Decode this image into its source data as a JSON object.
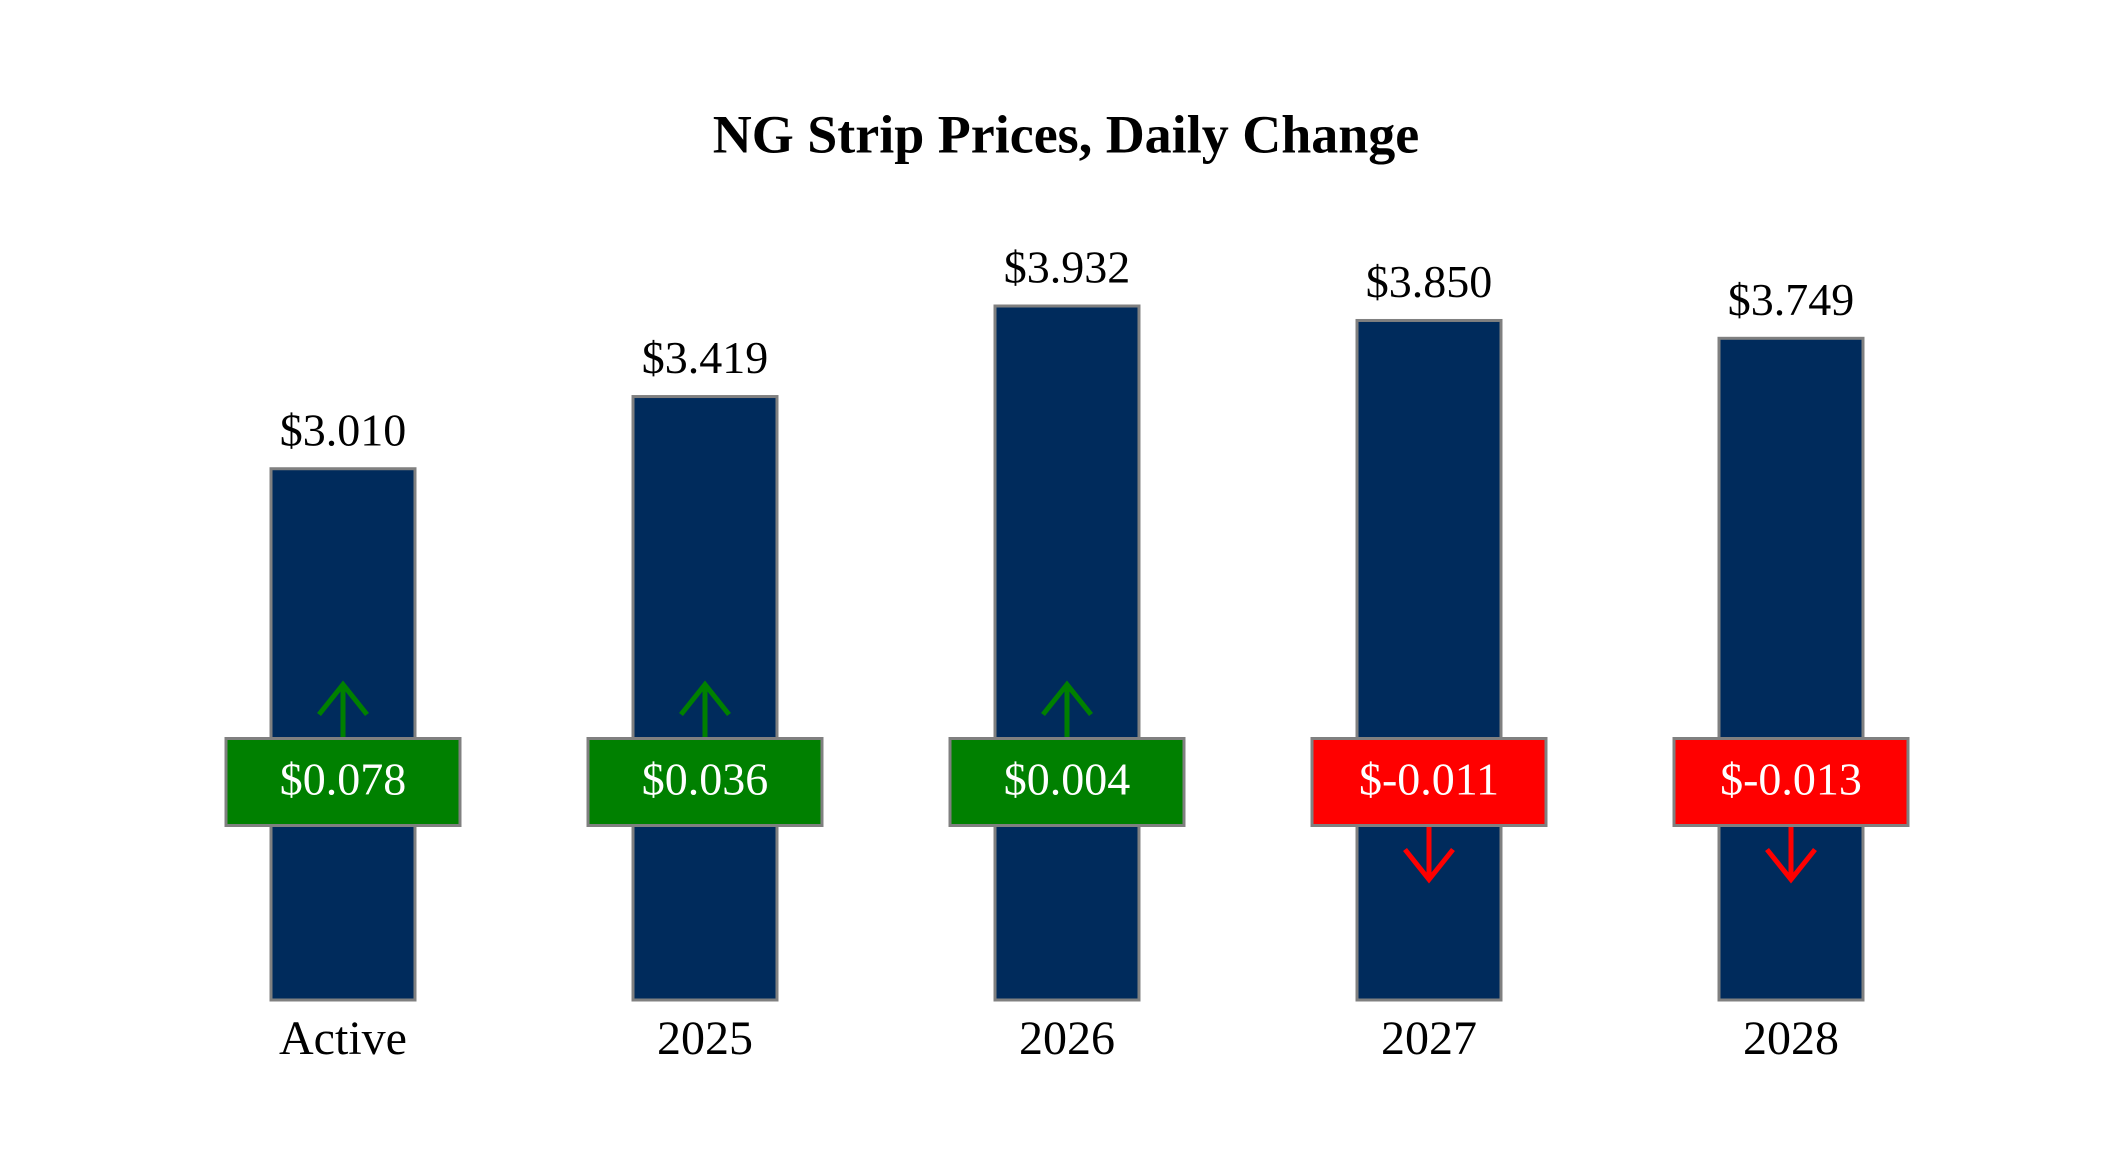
{
  "chart_data": {
    "type": "bar",
    "title": "NG Strip Prices, Daily Change",
    "categories": [
      "Active",
      "2025",
      "2026",
      "2027",
      "2028"
    ],
    "values": [
      3.01,
      3.419,
      3.932,
      3.85,
      3.749
    ],
    "value_labels": [
      "$3.010",
      "$3.419",
      "$3.932",
      "$3.850",
      "$3.749"
    ],
    "color": "#002b5c",
    "changes": [
      0.078,
      0.036,
      0.004,
      -0.011,
      -0.013
    ],
    "change_labels": [
      "$0.078",
      "$0.036",
      "$0.004",
      "$-0.011",
      "$-0.013"
    ],
    "up_color": "#008000",
    "down_color": "#ff0000"
  }
}
